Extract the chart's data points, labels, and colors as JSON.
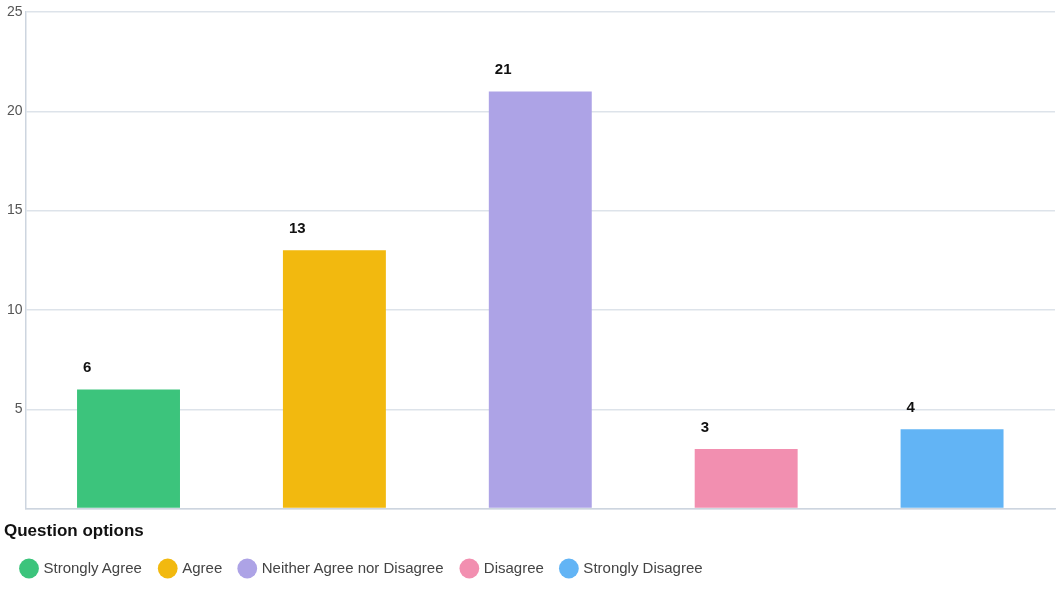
{
  "chart_data": {
    "type": "bar",
    "categories": [
      null,
      null,
      null,
      null,
      null
    ],
    "series": [
      {
        "name": "Strongly Agree",
        "color": "#3cc47c",
        "values": [
          6,
          null,
          null,
          null,
          null
        ]
      },
      {
        "name": "Agree",
        "color": "#f2b90f",
        "values": [
          null,
          13,
          null,
          null,
          null
        ]
      },
      {
        "name": "Neither Agree nor Disagree",
        "color": "#ada3e6",
        "values": [
          null,
          null,
          21,
          null,
          null
        ]
      },
      {
        "name": "Disagree",
        "color": "#f28fb0",
        "values": [
          null,
          null,
          null,
          3,
          null
        ]
      },
      {
        "name": "Strongly Disagree",
        "color": "#62b4f5",
        "values": [
          null,
          null,
          null,
          null,
          4
        ]
      }
    ],
    "ylim": [
      0,
      25
    ],
    "yticks": [
      {
        "value": 0,
        "label": null
      },
      5,
      10,
      15,
      20,
      25
    ],
    "grid": "y",
    "tick_labels": "y",
    "data_labels": true,
    "legend": "bottom",
    "legend_title": "Question options"
  }
}
